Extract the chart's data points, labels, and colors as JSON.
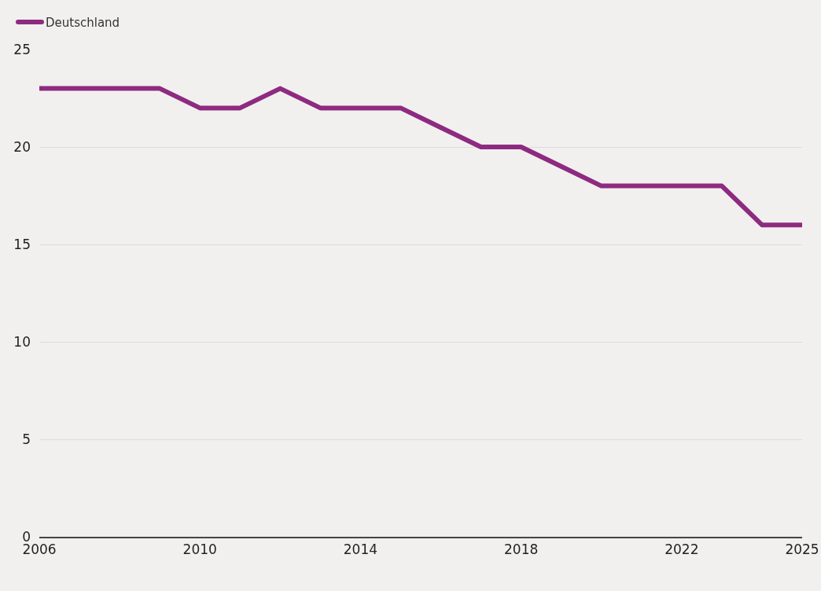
{
  "chart_data": {
    "type": "line",
    "x": [
      2006,
      2007,
      2008,
      2009,
      2010,
      2011,
      2012,
      2013,
      2014,
      2015,
      2016,
      2017,
      2018,
      2019,
      2020,
      2021,
      2022,
      2023,
      2024,
      2025
    ],
    "series": [
      {
        "name": "Deutschland",
        "color": "#8e2a80",
        "values": [
          23,
          23,
          23,
          23,
          22,
          22,
          23,
          22,
          22,
          22,
          21,
          20,
          20,
          19,
          18,
          18,
          18,
          18,
          16,
          16
        ]
      }
    ],
    "xlim": [
      2006,
      2025
    ],
    "xticks": [
      2006,
      2010,
      2014,
      2018,
      2022,
      2025
    ],
    "ylim": [
      0,
      25
    ],
    "yticks": [
      0,
      5,
      10,
      15,
      20,
      25
    ],
    "grid": "y",
    "legend": "top left",
    "line_style": "solid"
  }
}
